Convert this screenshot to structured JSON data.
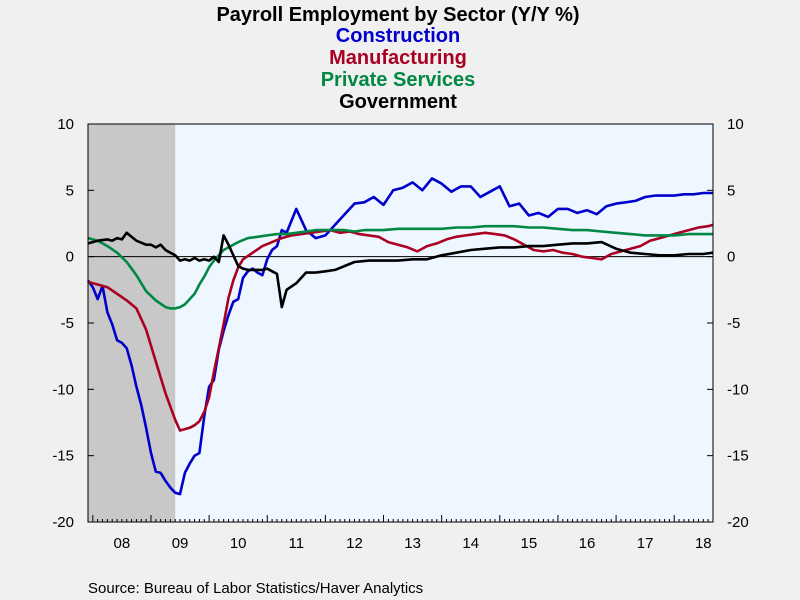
{
  "chart_data": {
    "type": "line",
    "title": "Payroll Employment by Sector (Y/Y %)",
    "source": "Source:  Bureau of Labor Statistics/Haver Analytics",
    "x_tick_labels": [
      "08",
      "09",
      "10",
      "11",
      "12",
      "13",
      "14",
      "15",
      "16",
      "17",
      "18"
    ],
    "x_tick_years": [
      2008,
      2009,
      2010,
      2011,
      2012,
      2013,
      2014,
      2015,
      2016,
      2017,
      2018
    ],
    "xlim": [
      2007.917,
      2018.667
    ],
    "ylim": [
      -20,
      10
    ],
    "y_ticks": [
      10,
      5,
      0,
      -5,
      -10,
      -15,
      -20
    ],
    "recession_shading": [
      2007.917,
      2009.417
    ],
    "grid": false,
    "zero_line": true,
    "colors": {
      "plot_bg": "#eef6ff",
      "recession": "#c8c8c8",
      "page_bg": "#f0f0f0"
    },
    "series": [
      {
        "name": "Construction",
        "color": "#0000cc",
        "x": [
          2007.917,
          2008.0,
          2008.083,
          2008.167,
          2008.25,
          2008.333,
          2008.417,
          2008.5,
          2008.583,
          2008.667,
          2008.75,
          2008.833,
          2008.917,
          2009.0,
          2009.083,
          2009.167,
          2009.25,
          2009.333,
          2009.417,
          2009.5,
          2009.583,
          2009.667,
          2009.75,
          2009.833,
          2009.917,
          2010.0,
          2010.083,
          2010.167,
          2010.25,
          2010.333,
          2010.417,
          2010.5,
          2010.583,
          2010.667,
          2010.75,
          2010.833,
          2010.917,
          2011.0,
          2011.083,
          2011.167,
          2011.25,
          2011.333,
          2011.5,
          2011.667,
          2011.833,
          2012.0,
          2012.167,
          2012.333,
          2012.5,
          2012.667,
          2012.833,
          2013.0,
          2013.167,
          2013.333,
          2013.5,
          2013.667,
          2013.833,
          2014.0,
          2014.167,
          2014.333,
          2014.5,
          2014.667,
          2014.833,
          2015.0,
          2015.167,
          2015.333,
          2015.5,
          2015.667,
          2015.833,
          2016.0,
          2016.167,
          2016.333,
          2016.5,
          2016.667,
          2016.833,
          2017.0,
          2017.167,
          2017.333,
          2017.5,
          2017.667,
          2017.833,
          2018.0,
          2018.167,
          2018.333,
          2018.5,
          2018.667
        ],
        "values": [
          -1.8,
          -2.3,
          -3.2,
          -2.2,
          -4.2,
          -5.1,
          -6.3,
          -6.5,
          -6.9,
          -8.2,
          -9.8,
          -11.2,
          -12.9,
          -14.8,
          -16.2,
          -16.3,
          -16.9,
          -17.4,
          -17.8,
          -17.9,
          -16.3,
          -15.6,
          -15.0,
          -14.8,
          -12.0,
          -9.8,
          -9.3,
          -7.0,
          -5.6,
          -4.4,
          -3.4,
          -3.2,
          -1.6,
          -1.1,
          -0.9,
          -1.2,
          -1.4,
          -0.2,
          0.5,
          0.8,
          2.0,
          1.8,
          3.6,
          2.0,
          1.4,
          1.6,
          2.4,
          3.2,
          4.0,
          4.1,
          4.5,
          3.9,
          5.0,
          5.2,
          5.6,
          5.0,
          5.9,
          5.5,
          4.9,
          5.3,
          5.3,
          4.5,
          4.9,
          5.3,
          3.8,
          4.0,
          3.1,
          3.3,
          3.0,
          3.6,
          3.6,
          3.3,
          3.5,
          3.2,
          3.8,
          4.0,
          4.1,
          4.2,
          4.5,
          4.6,
          4.6,
          4.6,
          4.7,
          4.7,
          4.8,
          4.8
        ]
      },
      {
        "name": "Manufacturing",
        "color": "#aa0022",
        "x": [
          2007.917,
          2008.083,
          2008.25,
          2008.417,
          2008.583,
          2008.75,
          2008.917,
          2009.083,
          2009.25,
          2009.417,
          2009.5,
          2009.583,
          2009.667,
          2009.75,
          2009.833,
          2009.917,
          2010.0,
          2010.083,
          2010.167,
          2010.25,
          2010.333,
          2010.417,
          2010.5,
          2010.583,
          2010.75,
          2010.917,
          2011.083,
          2011.25,
          2011.417,
          2011.583,
          2011.75,
          2011.917,
          2012.083,
          2012.25,
          2012.417,
          2012.583,
          2012.75,
          2012.917,
          2013.083,
          2013.25,
          2013.417,
          2013.583,
          2013.75,
          2013.917,
          2014.083,
          2014.25,
          2014.417,
          2014.583,
          2014.75,
          2014.917,
          2015.083,
          2015.25,
          2015.417,
          2015.583,
          2015.75,
          2015.917,
          2016.083,
          2016.25,
          2016.417,
          2016.583,
          2016.75,
          2016.917,
          2017.083,
          2017.25,
          2017.417,
          2017.583,
          2017.75,
          2017.917,
          2018.083,
          2018.25,
          2018.417,
          2018.583,
          2018.667
        ],
        "values": [
          -1.9,
          -2.1,
          -2.3,
          -2.8,
          -3.3,
          -3.9,
          -5.5,
          -7.9,
          -10.3,
          -12.3,
          -13.1,
          -13.0,
          -12.9,
          -12.7,
          -12.4,
          -11.7,
          -10.6,
          -8.7,
          -6.9,
          -5.1,
          -3.1,
          -1.8,
          -0.8,
          -0.2,
          0.3,
          0.8,
          1.1,
          1.4,
          1.6,
          1.7,
          1.8,
          1.9,
          2.0,
          1.8,
          1.9,
          1.7,
          1.6,
          1.5,
          1.1,
          0.9,
          0.7,
          0.4,
          0.8,
          1.0,
          1.3,
          1.5,
          1.6,
          1.7,
          1.8,
          1.7,
          1.6,
          1.3,
          0.9,
          0.5,
          0.4,
          0.5,
          0.3,
          0.2,
          0.0,
          -0.1,
          -0.2,
          0.2,
          0.4,
          0.6,
          0.8,
          1.2,
          1.4,
          1.6,
          1.8,
          2.0,
          2.2,
          2.3,
          2.4
        ]
      },
      {
        "name": "Private Services",
        "color": "#008844",
        "x": [
          2007.917,
          2008.083,
          2008.25,
          2008.417,
          2008.583,
          2008.75,
          2008.917,
          2009.083,
          2009.25,
          2009.333,
          2009.417,
          2009.5,
          2009.583,
          2009.667,
          2009.75,
          2009.833,
          2009.917,
          2010.0,
          2010.083,
          2010.167,
          2010.25,
          2010.333,
          2010.417,
          2010.5,
          2010.667,
          2010.833,
          2011.0,
          2011.167,
          2011.333,
          2011.5,
          2011.667,
          2011.833,
          2012.0,
          2012.167,
          2012.333,
          2012.5,
          2012.667,
          2012.833,
          2013.0,
          2013.25,
          2013.5,
          2013.75,
          2014.0,
          2014.25,
          2014.5,
          2014.75,
          2015.0,
          2015.25,
          2015.5,
          2015.75,
          2016.0,
          2016.25,
          2016.5,
          2016.75,
          2017.0,
          2017.25,
          2017.5,
          2017.75,
          2018.0,
          2018.25,
          2018.5,
          2018.667
        ],
        "values": [
          1.4,
          1.2,
          0.8,
          0.3,
          -0.4,
          -1.4,
          -2.6,
          -3.3,
          -3.8,
          -3.9,
          -3.9,
          -3.8,
          -3.6,
          -3.2,
          -2.8,
          -2.1,
          -1.5,
          -0.8,
          -0.3,
          0.1,
          0.5,
          0.7,
          0.9,
          1.1,
          1.4,
          1.5,
          1.6,
          1.7,
          1.7,
          1.8,
          1.9,
          2.0,
          2.0,
          2.0,
          2.0,
          1.9,
          2.0,
          2.0,
          2.0,
          2.1,
          2.1,
          2.1,
          2.1,
          2.2,
          2.2,
          2.3,
          2.3,
          2.3,
          2.2,
          2.2,
          2.1,
          2.0,
          2.0,
          1.9,
          1.8,
          1.7,
          1.6,
          1.6,
          1.6,
          1.7,
          1.7,
          1.7
        ]
      },
      {
        "name": "Government",
        "color": "#000000",
        "x": [
          2007.917,
          2008.083,
          2008.25,
          2008.333,
          2008.417,
          2008.5,
          2008.583,
          2008.75,
          2008.917,
          2009.0,
          2009.083,
          2009.167,
          2009.25,
          2009.333,
          2009.417,
          2009.5,
          2009.583,
          2009.667,
          2009.75,
          2009.833,
          2009.917,
          2010.0,
          2010.083,
          2010.167,
          2010.25,
          2010.333,
          2010.417,
          2010.5,
          2010.583,
          2010.667,
          2010.75,
          2010.833,
          2010.917,
          2011.0,
          2011.083,
          2011.167,
          2011.25,
          2011.333,
          2011.5,
          2011.667,
          2011.833,
          2012.0,
          2012.167,
          2012.333,
          2012.5,
          2012.75,
          2013.0,
          2013.25,
          2013.5,
          2013.75,
          2014.0,
          2014.25,
          2014.5,
          2014.75,
          2015.0,
          2015.25,
          2015.5,
          2015.75,
          2016.0,
          2016.25,
          2016.5,
          2016.75,
          2017.0,
          2017.25,
          2017.5,
          2017.75,
          2018.0,
          2018.25,
          2018.5,
          2018.667
        ],
        "values": [
          1.0,
          1.2,
          1.3,
          1.2,
          1.4,
          1.3,
          1.8,
          1.2,
          0.9,
          0.9,
          0.7,
          0.9,
          0.5,
          0.3,
          0.1,
          -0.3,
          -0.2,
          -0.3,
          -0.1,
          -0.3,
          -0.2,
          -0.3,
          0.0,
          -0.4,
          1.6,
          0.9,
          0.1,
          -0.7,
          -0.9,
          -1.0,
          -1.0,
          -1.0,
          -1.0,
          -0.9,
          -1.1,
          -1.3,
          -3.8,
          -2.5,
          -2.0,
          -1.2,
          -1.2,
          -1.1,
          -1.0,
          -0.7,
          -0.4,
          -0.3,
          -0.3,
          -0.3,
          -0.2,
          -0.2,
          0.1,
          0.3,
          0.5,
          0.6,
          0.7,
          0.7,
          0.8,
          0.8,
          0.9,
          1.0,
          1.0,
          1.1,
          0.6,
          0.3,
          0.2,
          0.1,
          0.1,
          0.2,
          0.2,
          0.3
        ]
      }
    ]
  }
}
